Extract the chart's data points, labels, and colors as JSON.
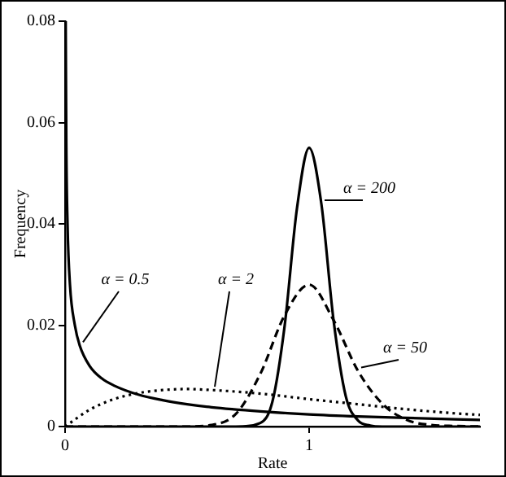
{
  "chart_data": {
    "type": "line",
    "xlabel": "Rate",
    "ylabel": "Frequency",
    "xlim": [
      0,
      1.7
    ],
    "xticks": [
      0,
      1
    ],
    "ylim": [
      0,
      0.08
    ],
    "yticks": [
      0,
      0.02,
      0.04,
      0.06,
      0.08
    ],
    "grid": false,
    "legend": false,
    "marker": "none",
    "series": [
      {
        "name": "α = 0.5",
        "color": "#000000",
        "line_style": "solid",
        "x": [
          0.0025,
          0.005,
          0.01,
          0.02,
          0.04,
          0.06,
          0.1,
          0.15,
          0.2,
          0.3,
          0.4,
          0.5,
          0.6,
          0.8,
          1.0,
          1.2,
          1.4,
          1.7
        ],
        "values": [
          0.08,
          0.056,
          0.04,
          0.028,
          0.02,
          0.016,
          0.012,
          0.0095,
          0.0081,
          0.0063,
          0.0052,
          0.0044,
          0.0038,
          0.003,
          0.0024,
          0.002,
          0.0017,
          0.0013
        ]
      },
      {
        "name": "α = 2",
        "color": "#000000",
        "line_style": "dotted",
        "x": [
          0,
          0.1,
          0.2,
          0.3,
          0.4,
          0.5,
          0.6,
          0.8,
          1.0,
          1.2,
          1.4,
          1.6,
          1.7
        ],
        "values": [
          0,
          0.0033,
          0.0054,
          0.0066,
          0.0072,
          0.0074,
          0.0072,
          0.0065,
          0.0054,
          0.0044,
          0.0034,
          0.0026,
          0.0023
        ]
      },
      {
        "name": "α = 50",
        "color": "#000000",
        "line_style": "dashed",
        "x": [
          0,
          0.5,
          0.6,
          0.7,
          0.8,
          0.9,
          1.0,
          1.1,
          1.2,
          1.3,
          1.4,
          1.5,
          1.6,
          1.7
        ],
        "values": [
          0,
          0,
          0.0003,
          0.0025,
          0.0104,
          0.022,
          0.028,
          0.021,
          0.011,
          0.0045,
          0.0013,
          0.0003,
          0.0001,
          0
        ]
      },
      {
        "name": "α = 200",
        "color": "#000000",
        "line_style": "solid",
        "x": [
          0,
          0.7,
          0.8,
          0.85,
          0.9,
          0.95,
          1.0,
          1.05,
          1.1,
          1.15,
          1.2,
          1.25,
          1.3,
          1.7
        ],
        "values": [
          0,
          0,
          0.0007,
          0.005,
          0.02,
          0.043,
          0.055,
          0.044,
          0.021,
          0.006,
          0.0012,
          0.0002,
          0,
          0
        ]
      }
    ]
  }
}
